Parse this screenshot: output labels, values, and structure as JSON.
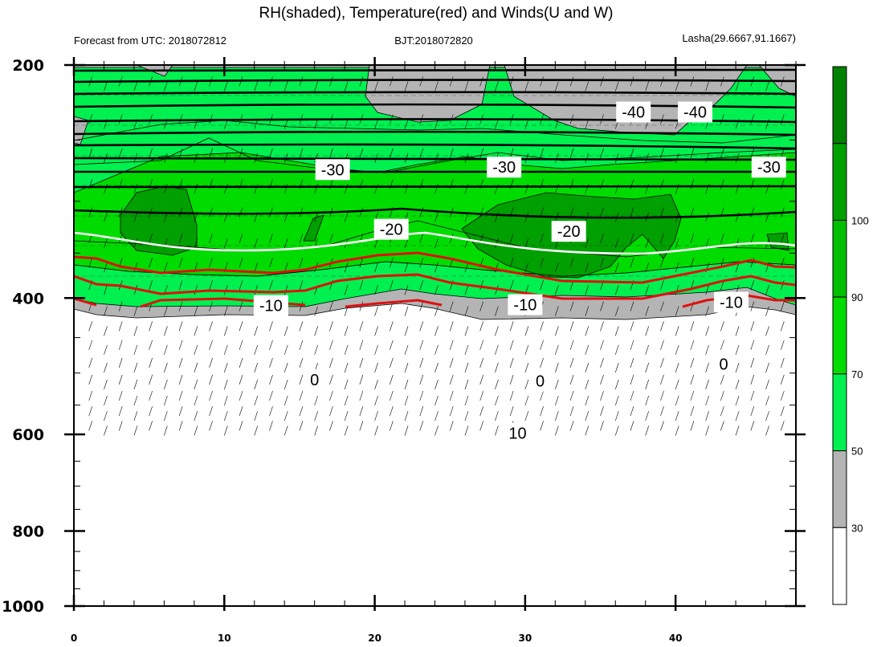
{
  "chart_data": {
    "type": "contour",
    "title": "RH(shaded), Temperature(red) and Winds(U and W)",
    "subtitles": {
      "left": "Forecast from UTC: 2018072812",
      "center": "BJT:2018072820",
      "right": "Lasha(29.6667,91.1667)"
    },
    "x_ticks": [
      0,
      10,
      20,
      30,
      40
    ],
    "xlim": [
      0,
      48
    ],
    "y_ticks": [
      200,
      400,
      600,
      800,
      1000
    ],
    "ylim": [
      1000,
      200
    ],
    "y_scale": "log-pressure",
    "colorbar": {
      "levels": [
        30,
        50,
        70,
        90,
        100
      ],
      "colors": [
        "#ffffff",
        "#b4b4b4",
        "#00f050",
        "#00dc00",
        "#00be00",
        "#00a000",
        "#008200"
      ]
    },
    "temperature_contours": [
      {
        "label": "-40",
        "p": 207
      },
      {
        "label": "-30",
        "p": 285
      },
      {
        "label": "-20",
        "p": 340
      },
      {
        "label": "-10",
        "p": 408
      },
      {
        "label": "0",
        "p": 500
      },
      {
        "label": "10",
        "p": 590
      }
    ],
    "contour_labels": [
      {
        "text": "-40",
        "x": 37.2,
        "p": 230
      },
      {
        "text": "-40",
        "x": 41.3,
        "p": 230
      },
      {
        "text": "-30",
        "x": 17.2,
        "p": 273
      },
      {
        "text": "-30",
        "x": 28.6,
        "p": 271
      },
      {
        "text": "-30",
        "x": 46.2,
        "p": 271
      },
      {
        "text": "-20",
        "x": 21.1,
        "p": 326
      },
      {
        "text": "-20",
        "x": 32.9,
        "p": 328
      },
      {
        "text": "-10",
        "x": 13.1,
        "p": 409
      },
      {
        "text": "-10",
        "x": 30.0,
        "p": 408
      },
      {
        "text": "-10",
        "x": 43.7,
        "p": 405
      },
      {
        "text": "0",
        "x": 16.0,
        "p": 510
      },
      {
        "text": "0",
        "x": 31.0,
        "p": 512
      },
      {
        "text": "0",
        "x": 43.2,
        "p": 487
      },
      {
        "text": "10",
        "x": 29.5,
        "p": 598
      }
    ]
  }
}
